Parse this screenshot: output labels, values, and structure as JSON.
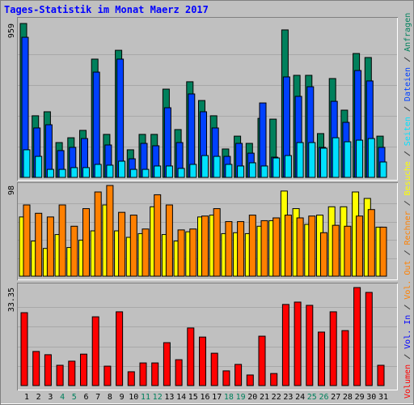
{
  "title": "Tages-Statistik im Monat Maerz 2017",
  "chart_data": [
    {
      "type": "bar",
      "categories": [
        "1",
        "2",
        "3",
        "4",
        "5",
        "6",
        "7",
        "8",
        "9",
        "10",
        "11",
        "12",
        "13",
        "14",
        "15",
        "16",
        "17",
        "18",
        "19",
        "20",
        "21",
        "22",
        "23",
        "24",
        "25",
        "26",
        "27",
        "28",
        "29",
        "30",
        "31"
      ],
      "category_colors": [
        "#000000",
        "#000000",
        "#000000",
        "#00805c",
        "#00805c",
        "#000000",
        "#000000",
        "#000000",
        "#000000",
        "#000000",
        "#00805c",
        "#00805c",
        "#000000",
        "#000000",
        "#000000",
        "#000000",
        "#000000",
        "#00805c",
        "#00805c",
        "#000000",
        "#000000",
        "#000000",
        "#000000",
        "#000000",
        "#00805c",
        "#00805c",
        "#000000",
        "#000000",
        "#000000",
        "#000000",
        "#000000"
      ],
      "series": [
        {
          "name": "Anfragen",
          "color": "#00805c",
          "values": [
            959,
            384,
            409,
            217,
            247,
            293,
            737,
            268,
            792,
            172,
            268,
            268,
            550,
            298,
            596,
            479,
            384,
            177,
            257,
            212,
            368,
            363,
            919,
            636,
            636,
            273,
            616,
            419,
            772,
            747,
            257
          ]
        },
        {
          "name": "Dateien",
          "color": "#0040ff",
          "values": [
            873,
            308,
            328,
            167,
            187,
            242,
            656,
            202,
            737,
            116,
            212,
            197,
            434,
            217,
            520,
            409,
            308,
            131,
            212,
            151,
            464,
            126,
            626,
            505,
            565,
            187,
            474,
            343,
            666,
            601,
            187
          ]
        },
        {
          "name": "Seiten",
          "color": "#00e0ff",
          "values": [
            172,
            131,
            50,
            50,
            61,
            61,
            81,
            76,
            101,
            50,
            50,
            71,
            71,
            56,
            81,
            136,
            131,
            81,
            71,
            91,
            71,
            121,
            136,
            217,
            217,
            182,
            247,
            222,
            232,
            242,
            96
          ]
        }
      ],
      "ylim": [
        0,
        959
      ],
      "yticks": [
        959
      ]
    },
    {
      "type": "bar",
      "series": [
        {
          "name": "Besuche",
          "color": "#ffff00",
          "values": [
            64,
            38,
            30,
            45,
            31,
            39,
            49,
            77,
            49,
            42,
            46,
            75,
            45,
            38,
            48,
            64,
            66,
            46,
            47,
            46,
            54,
            60,
            92,
            73,
            56,
            66,
            75,
            75,
            91,
            84,
            53
          ]
        },
        {
          "name": "Rechner",
          "color": "#ff8000",
          "values": [
            77,
            68,
            64,
            77,
            54,
            73,
            91,
            98,
            69,
            66,
            51,
            88,
            77,
            50,
            51,
            65,
            73,
            59,
            59,
            66,
            60,
            63,
            66,
            63,
            65,
            47,
            55,
            54,
            65,
            72,
            53
          ]
        }
      ],
      "ylim": [
        0,
        98
      ],
      "yticks": [
        98
      ]
    },
    {
      "type": "bar",
      "series": [
        {
          "name": "Volumen",
          "color": "#ff0000",
          "values": [
            24.8,
            11.6,
            10.5,
            6.9,
            8.3,
            10.7,
            23.4,
            6.6,
            25.1,
            4.7,
            7.7,
            7.7,
            14.6,
            8.8,
            19.6,
            16.5,
            11.0,
            5.0,
            7.2,
            3.6,
            16.8,
            4.1,
            27.6,
            28.4,
            27.3,
            18.2,
            25.1,
            18.7,
            33.35,
            31.7,
            6.9
          ]
        }
      ],
      "extra_legend": [
        {
          "name": "Vol. In",
          "color": "#0000ff"
        },
        {
          "name": "Vol. Out",
          "color": "#ff8000"
        }
      ],
      "ylim": [
        0,
        33.35
      ],
      "yticks": [
        33.35
      ]
    }
  ]
}
